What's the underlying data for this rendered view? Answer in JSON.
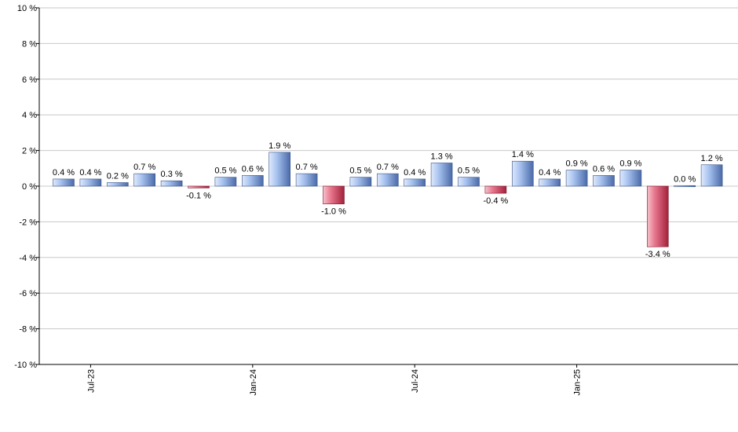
{
  "chart_data": {
    "type": "bar",
    "title": "",
    "xlabel": "",
    "ylabel": "",
    "ylim": [
      -10,
      10
    ],
    "grid": true,
    "y_ticks": [
      "10 %",
      "8 %",
      "6 %",
      "4 %",
      "2 %",
      "0 %",
      "-2 %",
      "-4 %",
      "-6 %",
      "-8 %",
      "-10 %"
    ],
    "x_tick_labels": [
      {
        "label": "Jul-23",
        "index": 1
      },
      {
        "label": "Jan-24",
        "index": 7
      },
      {
        "label": "Jul-24",
        "index": 13
      },
      {
        "label": "Jan-25",
        "index": 19
      }
    ],
    "values": [
      0.4,
      0.4,
      0.2,
      0.7,
      0.3,
      -0.1,
      0.5,
      0.6,
      1.9,
      0.7,
      -1.0,
      0.5,
      0.7,
      0.4,
      1.3,
      0.5,
      -0.4,
      1.4,
      0.4,
      0.9,
      0.6,
      0.9,
      -3.4,
      0.0,
      1.2
    ],
    "data_labels": [
      "0.4 %",
      "0.4 %",
      "0.2 %",
      "0.7 %",
      "0.3 %",
      "-0.1 %",
      "0.5 %",
      "0.6 %",
      "1.9 %",
      "0.7 %",
      "-1.0 %",
      "0.5 %",
      "0.7 %",
      "0.4 %",
      "1.3 %",
      "0.5 %",
      "-0.4 %",
      "1.4 %",
      "0.4 %",
      "0.9 %",
      "0.6 %",
      "0.9 %",
      "-3.4 %",
      "0.0 %",
      "1.2 %"
    ],
    "colors": {
      "positive_light": "#a9c4f0",
      "positive_dark": "#4a6aa8",
      "negative_light": "#e8788e",
      "negative_dark": "#a3203b",
      "grid": "#c8c8c8",
      "axis": "#000000"
    }
  }
}
